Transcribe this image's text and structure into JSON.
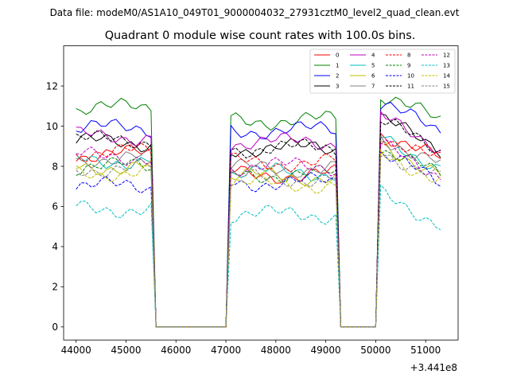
{
  "chart_data": {
    "type": "line",
    "suptitle": "Data file: modeM0/AS1A10_049T01_9000004032_27931cztM0_level2_quad_clean.evt",
    "title": "Quadrant 0 module wise count rates with 100.0s bins.",
    "xlabel": "",
    "ylabel": "",
    "x_offset_label": "+3.441e8",
    "xlim": [
      43750,
      51650
    ],
    "ylim": [
      -0.65,
      14
    ],
    "x_ticks": [
      44000,
      45000,
      46000,
      47000,
      48000,
      49000,
      50000,
      51000
    ],
    "x_tick_labels": [
      "44000",
      "45000",
      "46000",
      "47000",
      "48000",
      "49000",
      "50000",
      "51000"
    ],
    "y_ticks": [
      0,
      2,
      4,
      6,
      8,
      10,
      12
    ],
    "y_tick_labels": [
      "0",
      "2",
      "4",
      "6",
      "8",
      "10",
      "12"
    ],
    "legend_position": "top-right",
    "segments": [
      {
        "start": 44000,
        "end": 45500
      },
      {
        "start": 47100,
        "end": 49200
      },
      {
        "start": 50100,
        "end": 51300
      }
    ],
    "series": [
      {
        "name": "0",
        "color": "#ff0000",
        "style": "solid",
        "levels": [
          8.6,
          7.6,
          9.7
        ]
      },
      {
        "name": "1",
        "color": "#008000",
        "style": "solid",
        "levels": [
          10.9,
          10.3,
          11.6
        ]
      },
      {
        "name": "2",
        "color": "#0000ff",
        "style": "solid",
        "levels": [
          9.9,
          9.8,
          11.1
        ]
      },
      {
        "name": "3",
        "color": "#000000",
        "style": "solid",
        "levels": [
          9.2,
          8.9,
          10.3
        ]
      },
      {
        "name": "4",
        "color": "#bf00bf",
        "style": "solid",
        "levels": [
          9.5,
          9.2,
          10.4
        ]
      },
      {
        "name": "5",
        "color": "#00bfbf",
        "style": "solid",
        "levels": [
          8.3,
          7.7,
          9.4
        ]
      },
      {
        "name": "6",
        "color": "#bfbf00",
        "style": "solid",
        "levels": [
          8.0,
          7.5,
          9.1
        ]
      },
      {
        "name": "7",
        "color": "#808080",
        "style": "solid",
        "levels": [
          8.4,
          7.9,
          9.5
        ]
      },
      {
        "name": "8",
        "color": "#ff0000",
        "style": "dashed",
        "levels": [
          8.7,
          8.2,
          9.6
        ]
      },
      {
        "name": "9",
        "color": "#008000",
        "style": "dashed",
        "levels": [
          8.0,
          7.6,
          8.9
        ]
      },
      {
        "name": "10",
        "color": "#0000ff",
        "style": "dashed",
        "levels": [
          7.0,
          7.2,
          8.6
        ]
      },
      {
        "name": "11",
        "color": "#000000",
        "style": "dashed",
        "levels": [
          9.3,
          8.9,
          10.2
        ]
      },
      {
        "name": "12",
        "color": "#bf00bf",
        "style": "dashed",
        "levels": [
          8.5,
          8.0,
          9.0
        ]
      },
      {
        "name": "13",
        "color": "#00bfbf",
        "style": "dashed",
        "levels": [
          5.9,
          5.6,
          6.6
        ]
      },
      {
        "name": "14",
        "color": "#bfbf00",
        "style": "dashed",
        "levels": [
          7.7,
          7.1,
          8.7
        ]
      },
      {
        "name": "15",
        "color": "#808080",
        "style": "dashed",
        "levels": [
          7.9,
          7.4,
          8.8
        ]
      }
    ]
  }
}
